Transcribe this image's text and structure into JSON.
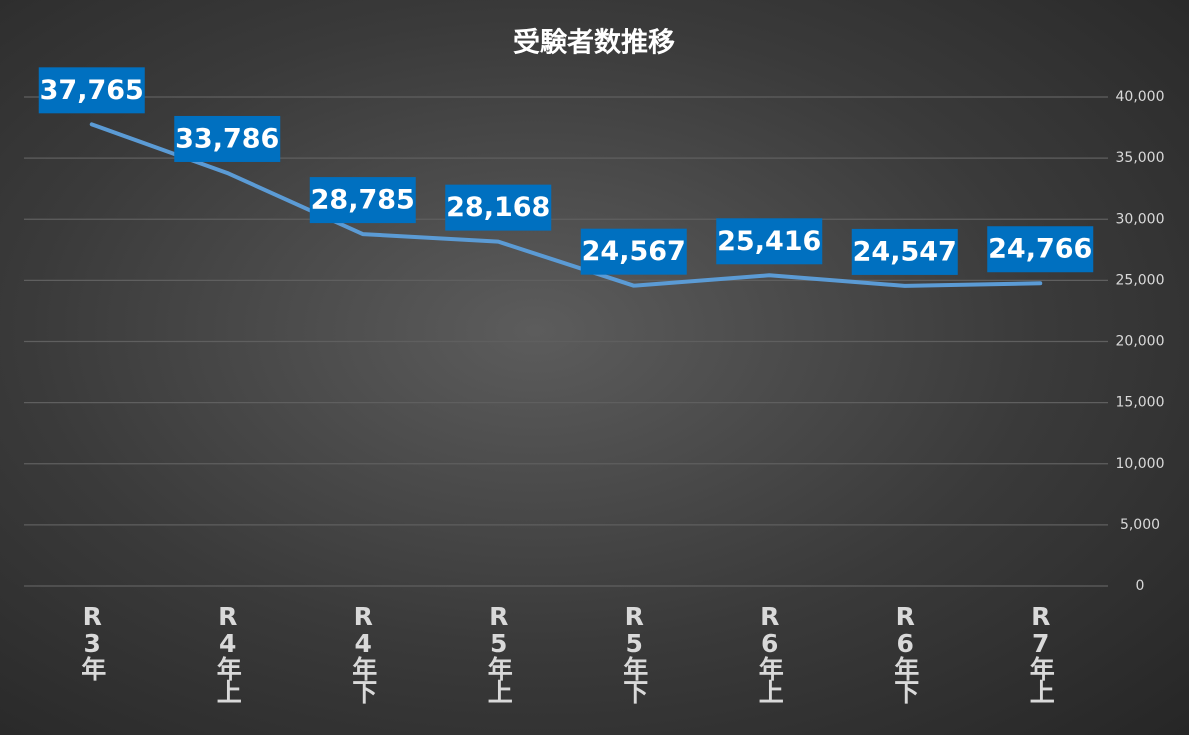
{
  "chart_data": {
    "type": "line",
    "title": "受験者数推移",
    "categories": [
      "R3年",
      "R4年上",
      "R4年下",
      "R5年上",
      "R5年下",
      "R6年上",
      "R6年下",
      "R7年上"
    ],
    "series": [
      {
        "name": "受験者数",
        "color": "#5b9bd5",
        "values": [
          37765,
          33786,
          28785,
          28168,
          24567,
          25416,
          24547,
          24766
        ],
        "value_labels": [
          "37,765",
          "33,786",
          "28,785",
          "28,168",
          "24,567",
          "25,416",
          "24,547",
          "24,766"
        ]
      }
    ],
    "label_color": "#0070c0",
    "ylim": [
      0,
      40000
    ],
    "yticks": [
      0,
      {
        "value": 5000,
        "label": "5,000"
      },
      {
        "value": 10000,
        "label": "10,000"
      },
      {
        "value": 15000,
        "label": "15,000"
      },
      {
        "value": 20000,
        "label": "20,000"
      },
      {
        "value": 25000,
        "label": "25,000"
      },
      {
        "value": 30000,
        "label": "30,000"
      },
      {
        "value": 35000,
        "label": "35,000"
      },
      {
        "value": 40000,
        "label": "40,000"
      }
    ],
    "grid": true
  }
}
